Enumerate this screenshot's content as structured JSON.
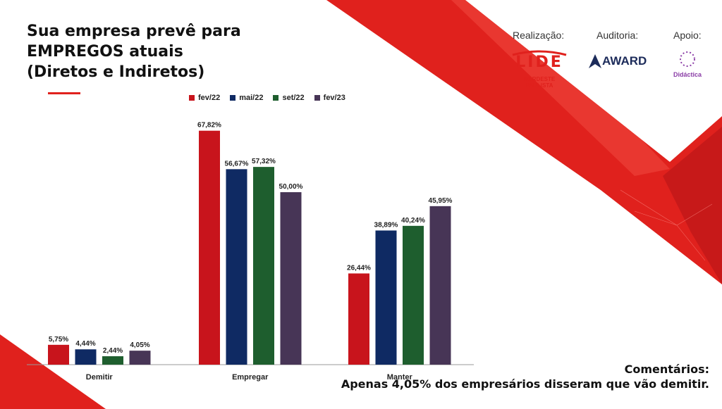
{
  "title_lines": [
    "Sua empresa prevê para",
    "EMPREGOS atuais",
    "(Diretos e Indiretos)"
  ],
  "sponsors": {
    "realizacao_label": "Realização:",
    "auditoria_label": "Auditoria:",
    "apoio_label": "Apoio:",
    "lide_name": "LIDE",
    "lide_subtitle": "NORDESTE PAULISTA",
    "award_name": "AWARD",
    "didactica_name": "Didáctica"
  },
  "colors": {
    "fev22": "#c8141c",
    "mai22": "#0f2a63",
    "set22": "#1e5e2e",
    "fev23": "#473556",
    "accent_red": "#e0211d"
  },
  "chart_data": {
    "type": "bar",
    "categories": [
      "Demitir",
      "Empregar",
      "Manter"
    ],
    "series": [
      {
        "name": "fev/22",
        "values": [
          5.75,
          67.82,
          26.44
        ],
        "labels": [
          "5,75%",
          "67,82%",
          "26,44%"
        ],
        "color": "#c8141c"
      },
      {
        "name": "mai/22",
        "values": [
          4.44,
          56.67,
          38.89
        ],
        "labels": [
          "4,44%",
          "56,67%",
          "38,89%"
        ],
        "color": "#0f2a63"
      },
      {
        "name": "set/22",
        "values": [
          2.44,
          57.32,
          40.24
        ],
        "labels": [
          "2,44%",
          "57,32%",
          "40,24%"
        ],
        "color": "#1e5e2e"
      },
      {
        "name": "fev/23",
        "values": [
          4.05,
          50.0,
          45.95
        ],
        "labels": [
          "4,05%",
          "50,00%",
          "45,95%"
        ],
        "color": "#473556"
      }
    ],
    "ylim": [
      0,
      70
    ],
    "legend": "top",
    "grid": false
  },
  "comment": {
    "heading": "Comentários:",
    "text": "Apenas 4,05% dos empresários disseram que vão demitir."
  }
}
